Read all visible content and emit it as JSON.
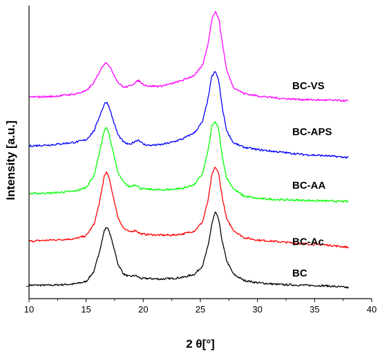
{
  "chart_data": {
    "type": "line",
    "title": "",
    "xlabel": "2 θ[°]",
    "ylabel": "Intensity [a.u.]",
    "xlim": [
      10,
      40
    ],
    "x_ticks": [
      "10",
      "15",
      "20",
      "25",
      "30",
      "35",
      "40"
    ],
    "y_ticks_labeled": false,
    "grid": false,
    "series": [
      {
        "name": "BC",
        "color": "#000000",
        "x": [
          10,
          12,
          14,
          15,
          15.7,
          16.2,
          16.6,
          16.8,
          17.0,
          17.4,
          17.8,
          18.3,
          18.8,
          19.3,
          19.8,
          20.5,
          21.5,
          22.5,
          23.5,
          24.5,
          25.2,
          25.7,
          26.0,
          26.3,
          26.6,
          26.9,
          27.3,
          27.9,
          28.8,
          30,
          32,
          34,
          36,
          38
        ],
        "y": [
          2,
          2,
          4,
          8,
          25,
          60,
          92,
          97,
          92,
          65,
          36,
          20,
          16,
          18,
          13,
          13,
          12,
          13,
          15,
          20,
          34,
          68,
          102,
          122,
          110,
          75,
          42,
          20,
          10,
          6,
          3,
          2,
          1,
          -2
        ]
      },
      {
        "name": "BC-Ac",
        "color": "#ff0000",
        "x": [
          10,
          12,
          14,
          15,
          15.7,
          16.2,
          16.6,
          16.8,
          17.0,
          17.4,
          17.8,
          18.3,
          18.8,
          19.3,
          19.8,
          20.5,
          21.5,
          22.5,
          23.5,
          24.5,
          25.2,
          25.7,
          26.0,
          26.3,
          26.6,
          26.9,
          27.3,
          27.9,
          28.8,
          30,
          32,
          34,
          36,
          38
        ],
        "y": [
          74,
          76,
          78,
          83,
          102,
          140,
          182,
          187,
          178,
          145,
          112,
          95,
          89,
          92,
          86,
          85,
          84,
          84,
          86,
          91,
          106,
          143,
          182,
          196,
          185,
          148,
          110,
          92,
          80,
          76,
          73,
          70,
          68,
          64
        ]
      },
      {
        "name": "BC-AA",
        "color": "#00ff00",
        "x": [
          10,
          12,
          14,
          15,
          15.7,
          16.2,
          16.6,
          16.8,
          17.0,
          17.4,
          17.8,
          18.3,
          18.8,
          19.3,
          19.8,
          20.5,
          21.5,
          22.5,
          23.5,
          24.5,
          25.2,
          25.7,
          26.0,
          26.3,
          26.6,
          26.9,
          27.3,
          27.9,
          28.8,
          30,
          32,
          34,
          36,
          38
        ],
        "y": [
          152,
          153,
          156,
          162,
          182,
          222,
          256,
          260,
          250,
          218,
          185,
          170,
          163,
          167,
          160,
          159,
          158,
          159,
          161,
          167,
          185,
          225,
          262,
          270,
          258,
          215,
          178,
          160,
          148,
          144,
          142,
          141,
          140,
          139
        ]
      },
      {
        "name": "BC-APS",
        "color": "#0000ff",
        "x": [
          10,
          12,
          14,
          15,
          15.7,
          16.2,
          16.6,
          16.8,
          17.0,
          17.4,
          17.8,
          18.3,
          18.8,
          19.3,
          19.6,
          20.0,
          20.5,
          21.5,
          22.5,
          23.5,
          24.5,
          25.2,
          25.7,
          26.0,
          26.3,
          26.6,
          26.9,
          27.3,
          27.9,
          28.8,
          30,
          32,
          34,
          36,
          38
        ],
        "y": [
          230,
          232,
          236,
          240,
          255,
          280,
          299,
          302,
          295,
          270,
          248,
          236,
          232,
          238,
          240,
          233,
          231,
          232,
          236,
          242,
          252,
          270,
          310,
          344,
          352,
          338,
          295,
          255,
          235,
          228,
          224,
          220,
          216,
          214,
          211
        ]
      },
      {
        "name": "BC-VS",
        "color": "#ff00ff",
        "x": [
          10,
          12,
          14,
          15,
          15.7,
          16.2,
          16.6,
          16.8,
          17.0,
          17.4,
          17.8,
          18.3,
          18.8,
          19.3,
          19.6,
          20.0,
          20.5,
          21.5,
          22.5,
          23.5,
          24.5,
          25.2,
          25.7,
          26.0,
          26.3,
          26.6,
          26.9,
          27.3,
          27.9,
          28.8,
          30,
          32,
          34,
          36,
          38
        ],
        "y": [
          310,
          311,
          315,
          320,
          334,
          353,
          365,
          367,
          362,
          348,
          334,
          326,
          328,
          334,
          337,
          331,
          328,
          328,
          332,
          338,
          346,
          362,
          400,
          438,
          450,
          440,
          402,
          354,
          326,
          316,
          312,
          308,
          306,
          305,
          304
        ]
      }
    ]
  }
}
